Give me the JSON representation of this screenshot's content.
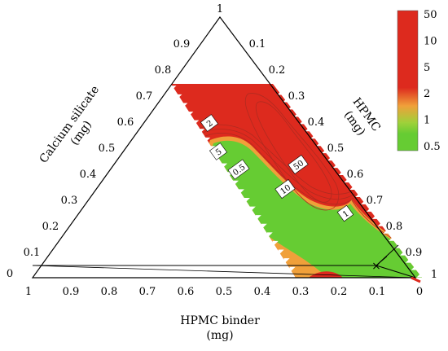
{
  "chart_data": {
    "type": "ternary-contour",
    "axes": {
      "left": {
        "label_lines": [
          "Calcium silicate",
          "(mg)"
        ],
        "ticks": [
          "0.1",
          "0.2",
          "0.3",
          "0.4",
          "0.5",
          "0.6",
          "0.7",
          "0.8",
          "0.9"
        ],
        "corner": "1"
      },
      "right": {
        "label_lines": [
          "HPMC",
          "(mg)"
        ],
        "ticks": [
          "0.1",
          "0.2",
          "0.3",
          "0.4",
          "0.5",
          "0.6",
          "0.7",
          "0.8",
          "0.9"
        ],
        "corner": "1"
      },
      "bottom": {
        "label_lines": [
          "HPMC binder",
          "(mg)"
        ],
        "ticks": [
          "0.9",
          "0.8",
          "0.7",
          "0.6",
          "0.5",
          "0.4",
          "0.3",
          "0.2",
          "0.1"
        ],
        "left_end": "1",
        "right_end": "0"
      },
      "left_corner": "0"
    },
    "region": {
      "calcium_silicate_max": 0.7
    },
    "contour_labels": [
      "2",
      "5",
      "0.5",
      "50",
      "10",
      "1"
    ],
    "colorbar": {
      "labels": [
        "50",
        "10",
        "5",
        "2",
        "1",
        "0.5"
      ],
      "colors": {
        "high": "#dd2a1e",
        "mid": "#f0a03a",
        "low": "#66cc33"
      }
    },
    "marker": {
      "symbol": "×",
      "calcium_silicate": 0.1,
      "hpmc": 0.89
    }
  }
}
